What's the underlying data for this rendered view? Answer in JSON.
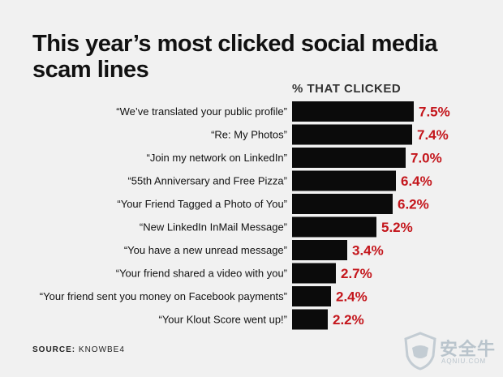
{
  "header": {
    "title": "This year’s most clicked social media scam lines",
    "column_header": "% THAT CLICKED"
  },
  "chart_data": {
    "type": "bar",
    "orientation": "horizontal",
    "title": "This year’s most clicked social media scam lines",
    "value_header": "% THAT CLICKED",
    "categories": [
      "“We’ve translated your public profile”",
      "“Re: My Photos”",
      "“Join my network on LinkedIn”",
      "“55th Anniversary and Free Pizza”",
      "“Your Friend Tagged a Photo of You”",
      "“New LinkedIn InMail Message”",
      "“You have a new unread message”",
      "“Your friend shared a video with you”",
      "“Your friend sent you money on Facebook payments”",
      "“Your Klout Score went up!”"
    ],
    "values": [
      7.5,
      7.4,
      7.0,
      6.4,
      6.2,
      5.2,
      3.4,
      2.7,
      2.4,
      2.2
    ],
    "value_labels": [
      "7.5%",
      "7.4%",
      "7.0%",
      "6.4%",
      "6.2%",
      "5.2%",
      "3.4%",
      "2.7%",
      "2.4%",
      "2.2%"
    ],
    "xlim": [
      0,
      7.5
    ],
    "grid": false,
    "legend": "none",
    "bar_color": "#0b0b0b",
    "value_color": "#c4161c"
  },
  "footer": {
    "source_label": "SOURCE:",
    "source_value": "KNOWBE4"
  },
  "watermark": {
    "text": "安全牛",
    "subtext": "AQNIU.COM",
    "icon": "shield-logo-icon",
    "color": "#b9c4cc"
  }
}
